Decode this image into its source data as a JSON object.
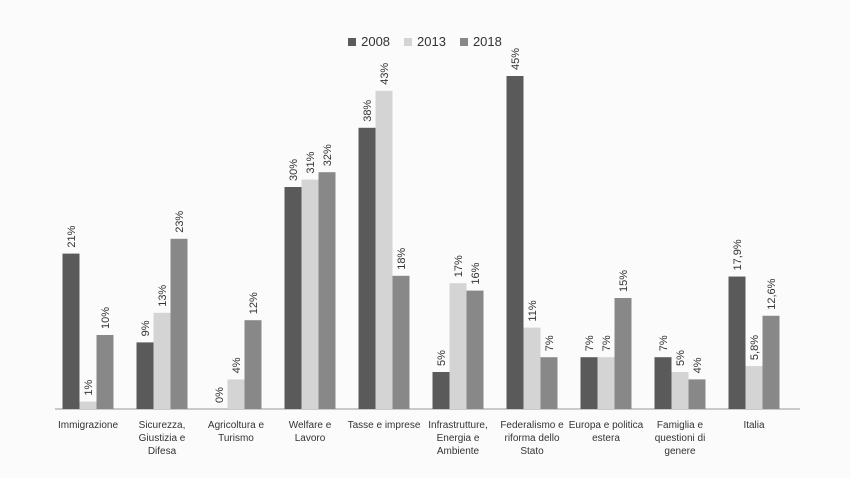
{
  "chart_data": {
    "type": "bar",
    "title": "",
    "xlabel": "",
    "ylabel": "",
    "ylim": [
      0,
      45
    ],
    "grid": false,
    "legend_position": "top-center",
    "categories": [
      "Immigrazione",
      "Sicurezza, Giustizia e Difesa",
      "Agricoltura e Turismo",
      "Welfare e Lavoro",
      "Tasse e imprese",
      "Infrastrutture, Energia e Ambiente",
      "Federalismo e riforma dello Stato",
      "Europa e politica estera",
      "Famiglia e questioni di genere",
      "Italia"
    ],
    "category_lines": [
      [
        "Immigrazione"
      ],
      [
        "Sicurezza,",
        "Giustizia e",
        "Difesa"
      ],
      [
        "Agricoltura e",
        "Turismo"
      ],
      [
        "Welfare e",
        "Lavoro"
      ],
      [
        "Tasse e imprese"
      ],
      [
        "Infrastrutture,",
        "Energia e",
        "Ambiente"
      ],
      [
        "Federalismo e",
        "riforma dello",
        "Stato"
      ],
      [
        "Europa e politica",
        "estera"
      ],
      [
        "Famiglia e",
        "questioni di",
        "genere"
      ],
      [
        "Italia"
      ]
    ],
    "series": [
      {
        "name": "2008",
        "color": "#5a5a5a",
        "values": [
          21,
          9,
          0,
          30,
          38,
          5,
          45,
          7,
          7,
          17.9
        ],
        "labels": [
          "21%",
          "9%",
          "0%",
          "30%",
          "38%",
          "5%",
          "45%",
          "7%",
          "7%",
          "17,9%"
        ]
      },
      {
        "name": "2013",
        "color": "#d4d4d4",
        "values": [
          1,
          13,
          4,
          31,
          43,
          17,
          11,
          7,
          5,
          5.8
        ],
        "labels": [
          "1%",
          "13%",
          "4%",
          "31%",
          "43%",
          "17%",
          "11%",
          "7%",
          "5%",
          "5,8%"
        ]
      },
      {
        "name": "2018",
        "color": "#888888",
        "values": [
          10,
          23,
          12,
          32,
          18,
          16,
          7,
          15,
          4,
          12.6
        ],
        "labels": [
          "10%",
          "23%",
          "12%",
          "32%",
          "18%",
          "16%",
          "7%",
          "15%",
          "4%",
          "12,6%"
        ]
      }
    ]
  }
}
